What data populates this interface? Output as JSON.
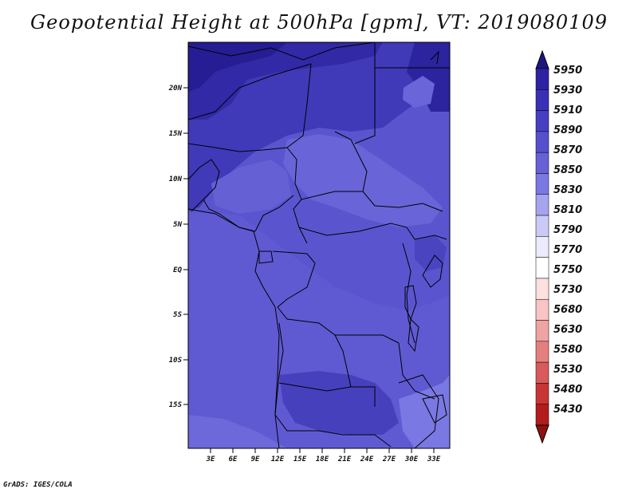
{
  "title": "Geopotential Height at 500hPa [gpm], VT: 2019080109",
  "credit": "GrADS: IGES/COLA",
  "map": {
    "lat_labels": [
      "20N",
      "15N",
      "10N",
      "5N",
      "EQ",
      "5S",
      "10S",
      "15S"
    ],
    "lon_labels": [
      "3E",
      "6E",
      "9E",
      "12E",
      "15E",
      "18E",
      "21E",
      "24E",
      "27E",
      "30E",
      "33E"
    ]
  },
  "colorbar": {
    "levels": [
      "5950",
      "5930",
      "5910",
      "5890",
      "5870",
      "5850",
      "5830",
      "5810",
      "5790",
      "5770",
      "5750",
      "5730",
      "5680",
      "5630",
      "5580",
      "5530",
      "5480",
      "5430"
    ],
    "colors": [
      "#1f1580",
      "#2d22a2",
      "#3a30b5",
      "#463fc2",
      "#5550cc",
      "#6661d6",
      "#7a78e2",
      "#a6a4ee",
      "#cbcaf6",
      "#ecebfc",
      "#ffffff",
      "#fde0e0",
      "#f8c4c4",
      "#f0a3a3",
      "#e57f7f",
      "#d85a5a",
      "#c83535",
      "#b31c1c",
      "#8f1010"
    ]
  }
}
